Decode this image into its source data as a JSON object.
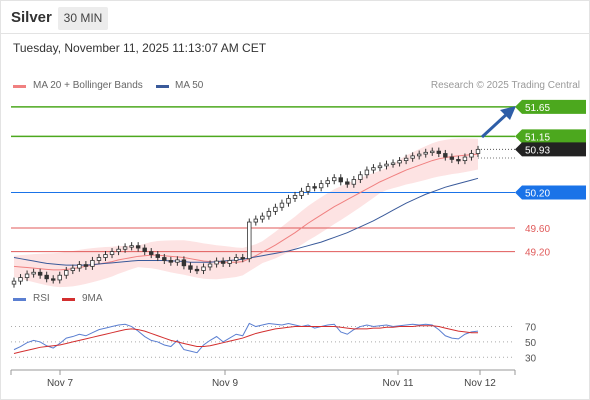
{
  "header": {
    "symbol": "Silver",
    "timeframe": "30 MIN",
    "timestamp": "Tuesday, November 11, 2025 11:13:07 AM CET"
  },
  "legend": {
    "ma20_label": "MA 20 + Bollinger Bands",
    "ma50_label": "MA 50",
    "credit": "Research © 2025 Trading Central",
    "rsi_label": "RSI",
    "rsi_ma_label": "9MA"
  },
  "colors": {
    "up": "#2e7d32",
    "down": "#c62828",
    "candle": "#333333",
    "ma20": "#f08080",
    "ma50": "#3a5a9a",
    "bollinger": "#fde3e3",
    "resistance": "#4ca81e",
    "pivot": "#1a73e8",
    "support": "#e05a5a",
    "rsi": "#5b7fd1",
    "rsi_ma": "#d32f2f",
    "arrow": "#2e5ea8"
  },
  "chart_data": {
    "type": "candlestick",
    "x_ticks": [
      "Nov 7",
      "Nov 9",
      "Nov 11",
      "Nov 12"
    ],
    "price_ylim": [
      48.55,
      51.85
    ],
    "levels": [
      {
        "label": "51.65",
        "value": 51.65,
        "kind": "resistance"
      },
      {
        "label": "51.15",
        "value": 51.15,
        "kind": "resistance"
      },
      {
        "label": "50.93",
        "value": 50.93,
        "kind": "last-price"
      },
      {
        "label": "50.20",
        "value": 50.2,
        "kind": "pivot"
      },
      {
        "label": "49.60",
        "value": 49.6,
        "kind": "support"
      },
      {
        "label": "49.20",
        "value": 49.2,
        "kind": "support"
      }
    ],
    "close_series": [
      48.7,
      48.76,
      48.82,
      48.85,
      48.8,
      48.74,
      48.72,
      48.8,
      48.88,
      48.92,
      48.98,
      48.95,
      49.05,
      49.1,
      49.15,
      49.2,
      49.24,
      49.28,
      49.3,
      49.26,
      49.2,
      49.15,
      49.1,
      49.05,
      49.02,
      49.06,
      48.96,
      48.9,
      48.88,
      48.94,
      48.99,
      49.04,
      49.0,
      49.05,
      49.1,
      49.08,
      49.7,
      49.75,
      49.8,
      49.88,
      49.95,
      50.02,
      50.1,
      50.15,
      50.22,
      50.3,
      50.28,
      50.35,
      50.4,
      50.45,
      50.38,
      50.34,
      50.42,
      50.5,
      50.58,
      50.62,
      50.65,
      50.68,
      50.7,
      50.74,
      50.78,
      50.82,
      50.85,
      50.88,
      50.9,
      50.86,
      50.8,
      50.76,
      50.74,
      50.8,
      50.86,
      50.93
    ],
    "ma20_series": [
      48.95,
      48.94,
      48.93,
      48.92,
      48.91,
      48.9,
      48.89,
      48.89,
      48.9,
      48.91,
      48.93,
      48.95,
      48.97,
      48.99,
      49.01,
      49.03,
      49.06,
      49.08,
      49.1,
      49.12,
      49.13,
      49.14,
      49.14,
      49.13,
      49.12,
      49.11,
      49.1,
      49.08,
      49.06,
      49.04,
      49.03,
      49.02,
      49.02,
      49.02,
      49.02,
      49.03,
      49.08,
      49.13,
      49.19,
      49.25,
      49.31,
      49.38,
      49.45,
      49.52,
      49.6,
      49.68,
      49.75,
      49.82,
      49.89,
      49.96,
      50.02,
      50.08,
      50.14,
      50.2,
      50.26,
      50.32,
      50.38,
      50.43,
      50.48,
      50.53,
      50.58,
      50.62,
      50.66,
      50.7,
      50.74,
      50.77,
      50.79,
      50.81,
      50.82,
      50.83,
      50.84,
      50.85
    ],
    "ma50_series": [
      49.1,
      49.08,
      49.06,
      49.04,
      49.02,
      49.0,
      48.99,
      48.98,
      48.97,
      48.97,
      48.97,
      48.97,
      48.98,
      48.99,
      49.0,
      49.01,
      49.02,
      49.03,
      49.04,
      49.05,
      49.05,
      49.05,
      49.05,
      49.05,
      49.04,
      49.04,
      49.03,
      49.02,
      49.02,
      49.02,
      49.02,
      49.03,
      49.04,
      49.05,
      49.06,
      49.07,
      49.09,
      49.11,
      49.13,
      49.15,
      49.17,
      49.19,
      49.21,
      49.24,
      49.27,
      49.3,
      49.33,
      49.36,
      49.4,
      49.44,
      49.48,
      49.52,
      49.57,
      49.62,
      49.67,
      49.72,
      49.78,
      49.84,
      49.9,
      49.96,
      50.02,
      50.07,
      50.12,
      50.17,
      50.21,
      50.25,
      50.29,
      50.32,
      50.35,
      50.38,
      50.41,
      50.44
    ],
    "rsi_ticks": [
      70,
      50,
      30
    ],
    "rsi_ylim": [
      20,
      85
    ],
    "rsi_series": [
      40,
      44,
      49,
      52,
      50,
      45,
      42,
      48,
      55,
      57,
      60,
      58,
      62,
      66,
      68,
      70,
      72,
      73,
      70,
      64,
      57,
      52,
      50,
      46,
      44,
      52,
      40,
      38,
      36,
      46,
      52,
      57,
      50,
      55,
      60,
      58,
      74,
      70,
      72,
      74,
      73,
      72,
      74,
      72,
      70,
      72,
      68,
      70,
      72,
      73,
      63,
      60,
      66,
      70,
      72,
      70,
      71,
      72,
      70,
      71,
      72,
      73,
      72,
      73,
      72,
      66,
      58,
      55,
      54,
      60,
      63,
      64
    ],
    "rsi_ma_series": [
      35,
      37,
      39,
      41,
      43,
      44,
      45,
      46,
      48,
      50,
      52,
      54,
      56,
      58,
      60,
      62,
      64,
      66,
      67,
      66,
      64,
      61,
      58,
      55,
      52,
      50,
      48,
      46,
      44,
      44,
      45,
      47,
      49,
      51,
      53,
      55,
      58,
      61,
      63,
      65,
      67,
      68,
      69,
      70,
      70,
      70,
      70,
      70,
      70,
      70,
      69,
      68,
      67,
      67,
      67,
      68,
      68,
      69,
      69,
      70,
      70,
      70,
      71,
      71,
      71,
      70,
      68,
      66,
      64,
      63,
      62,
      62
    ]
  }
}
